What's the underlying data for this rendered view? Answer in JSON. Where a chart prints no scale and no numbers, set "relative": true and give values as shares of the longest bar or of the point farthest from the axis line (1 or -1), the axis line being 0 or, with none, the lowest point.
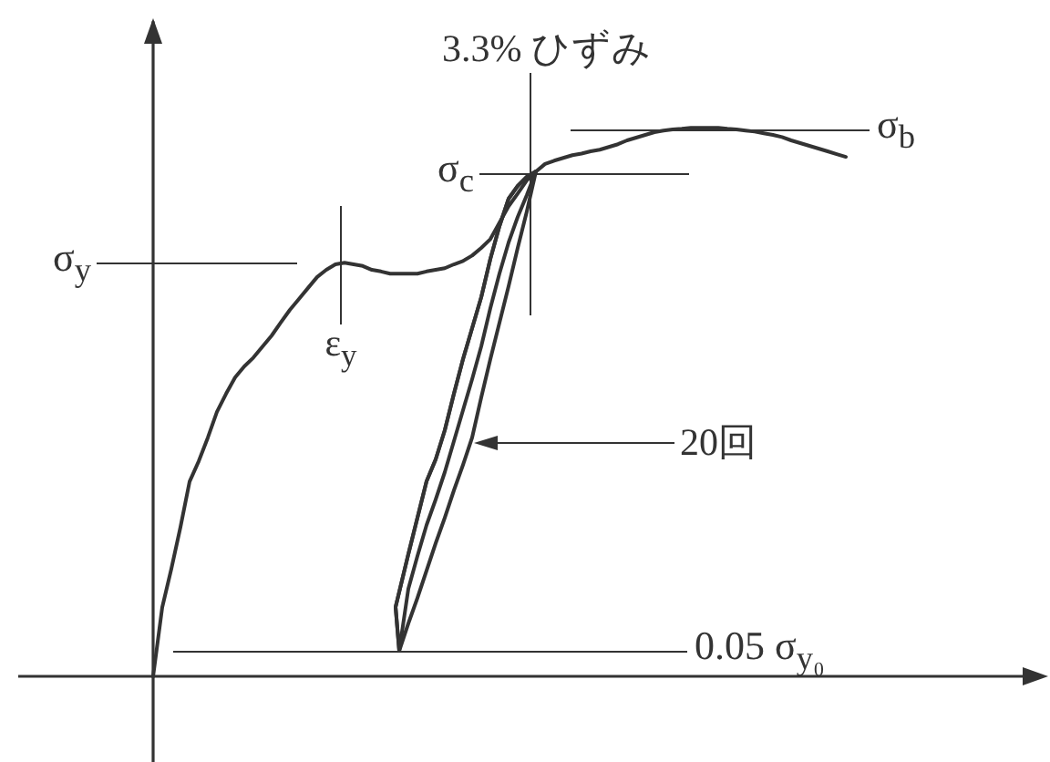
{
  "chart_data": {
    "type": "line",
    "relative": true,
    "marker": "none",
    "categories": [
      null,
      null,
      null,
      null,
      null,
      null,
      null,
      null,
      null,
      null,
      null,
      null,
      null,
      null,
      null,
      null,
      null,
      null,
      null,
      null,
      null,
      null,
      null,
      null,
      null,
      null,
      null,
      null,
      null,
      null,
      null,
      null,
      null,
      null,
      null,
      null,
      null,
      null,
      null,
      null,
      null,
      null,
      null,
      null,
      null,
      null,
      null,
      null,
      null,
      null,
      null,
      null,
      null,
      null,
      null,
      null,
      null,
      null,
      null,
      null,
      null,
      null,
      null,
      null,
      null,
      null,
      null,
      null,
      null,
      null,
      null,
      null,
      null,
      null,
      null,
      null,
      null,
      null,
      null,
      null,
      null,
      null,
      null,
      null,
      null,
      null,
      null,
      null,
      null,
      null,
      null,
      null,
      null,
      null,
      null,
      null,
      null,
      null
    ],
    "series": [
      {
        "color": "#333333",
        "values": [
          0,
          0.126,
          0.196,
          0.272,
          0.355,
          0.392,
          0.435,
          0.482,
          0.515,
          0.545,
          0.565,
          0.581,
          0.601,
          0.621,
          0.645,
          0.668,
          0.688,
          0.708,
          0.728,
          0.741,
          0.751,
          0.754,
          0.751,
          0.748,
          0.741,
          0.738,
          0.734,
          0.734,
          0.734,
          0.734,
          0.738,
          0.741,
          0.744,
          0.751,
          0.757,
          0.767,
          0.781,
          0.797,
          0.827,
          0.857,
          0.88,
          0.904,
          0.92,
          0.934,
          0.94,
          0.945,
          0.95,
          0.953,
          0.957,
          0.96,
          0.965,
          0.97,
          0.977,
          0.982,
          0.987,
          0.992,
          0.995,
          0.997,
          0.998,
          1,
          1,
          1,
          1,
          0.998,
          0.997,
          0.995,
          0.993,
          0.99,
          0.987,
          0.983,
          0.977,
          0.972,
          0.967,
          0.962,
          0.957,
          0.952,
          0.947,
          null,
          null,
          null,
          null,
          null,
          null,
          null,
          null,
          null,
          null,
          null,
          null,
          null,
          null,
          null,
          null,
          null,
          null,
          null,
          null,
          null
        ]
      }
    ],
    "ref_lines": [
      {
        "axis": "y",
        "value": 0.754,
        "label": "σ$_{y}$"
      },
      {
        "axis": "y",
        "value": 0.917,
        "label": "σ$_{c}$"
      },
      {
        "axis": "y",
        "value": 0.997,
        "label": "σ$_{b}$"
      },
      {
        "axis": "y",
        "value": 0.047,
        "label": "0.05 σ$_{y₀}$"
      }
    ],
    "annotations": [
      "ε$_{y}$",
      "3.3% ひずみ",
      "20回"
    ]
  }
}
